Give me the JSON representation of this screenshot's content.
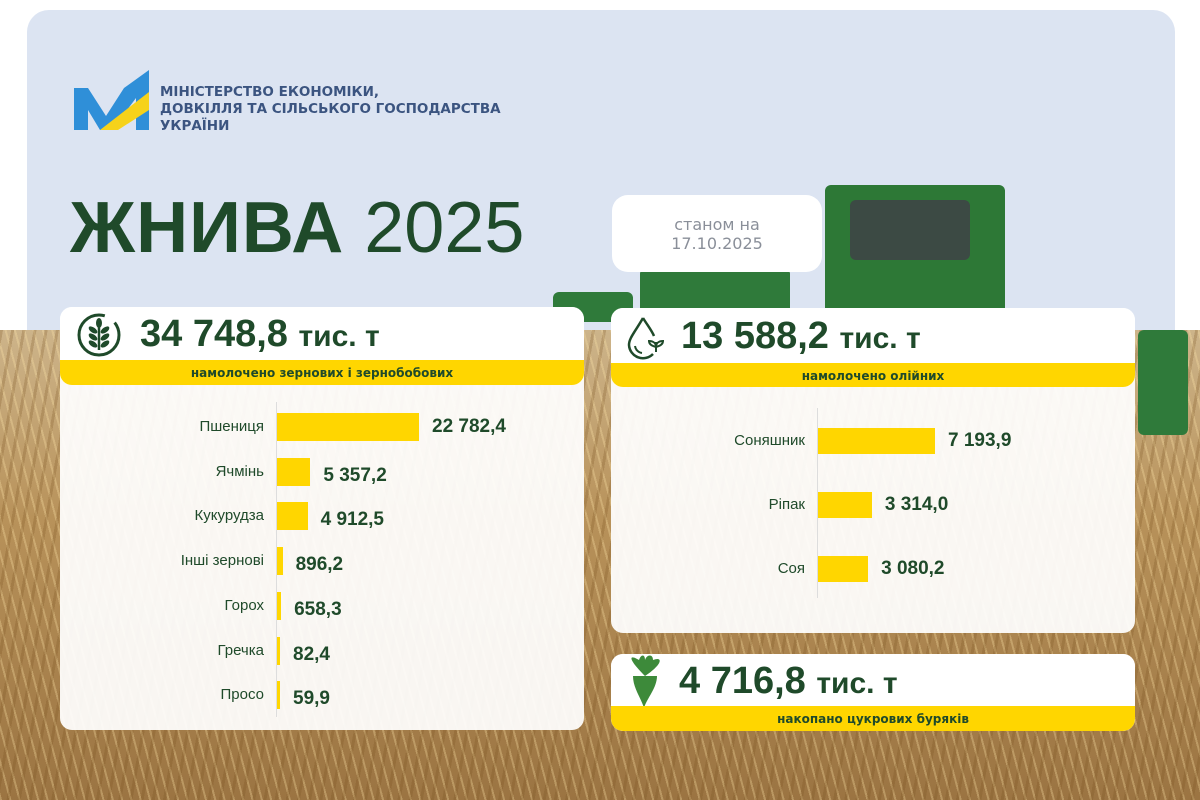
{
  "header": {
    "ministry_lines": [
      "МІНІСТЕРСТВО ЕКОНОМІКИ,",
      "ДОВКІЛЛЯ ТА СІЛЬСЬКОГО ГОСПОДАРСТВА",
      "УКРАЇНИ"
    ],
    "title_bold": "ЖНИВА",
    "title_year": "2025",
    "date_label": "станом на",
    "date": "17.10.2025"
  },
  "colors": {
    "accent": "#ffd600",
    "text": "#1f4a2a",
    "sky": "#dce4f2"
  },
  "chart_data": [
    {
      "type": "bar",
      "orientation": "horizontal",
      "total": "34 748,8",
      "unit": "тис. т",
      "caption": "намолочено зернових і зернобобових",
      "icon": "wheat-icon",
      "categories": [
        "Пшениця",
        "Ячмінь",
        "Кукурудза",
        "Інші зернові",
        "Горох",
        "Гречка",
        "Просо"
      ],
      "values": [
        22782.4,
        5357.2,
        4912.5,
        896.2,
        658.3,
        82.4,
        59.9
      ],
      "labels": [
        "22 782,4",
        "5 357,2",
        "4 912,5",
        "896,2",
        "658,3",
        "82,4",
        "59,9"
      ]
    },
    {
      "type": "bar",
      "orientation": "horizontal",
      "total": "13 588,2",
      "unit": "тис. т",
      "caption": "намолочено олійних",
      "icon": "oil-drop-icon",
      "categories": [
        "Соняшник",
        "Ріпак",
        "Соя"
      ],
      "values": [
        7193.9,
        3314.0,
        3080.2
      ],
      "labels": [
        "7 193,9",
        "3 314,0",
        "3 080,2"
      ]
    }
  ],
  "beet": {
    "total": "4 716,8",
    "unit": "тис. т",
    "caption": "накопано цукрових буряків",
    "icon": "sugar-beet-icon"
  }
}
